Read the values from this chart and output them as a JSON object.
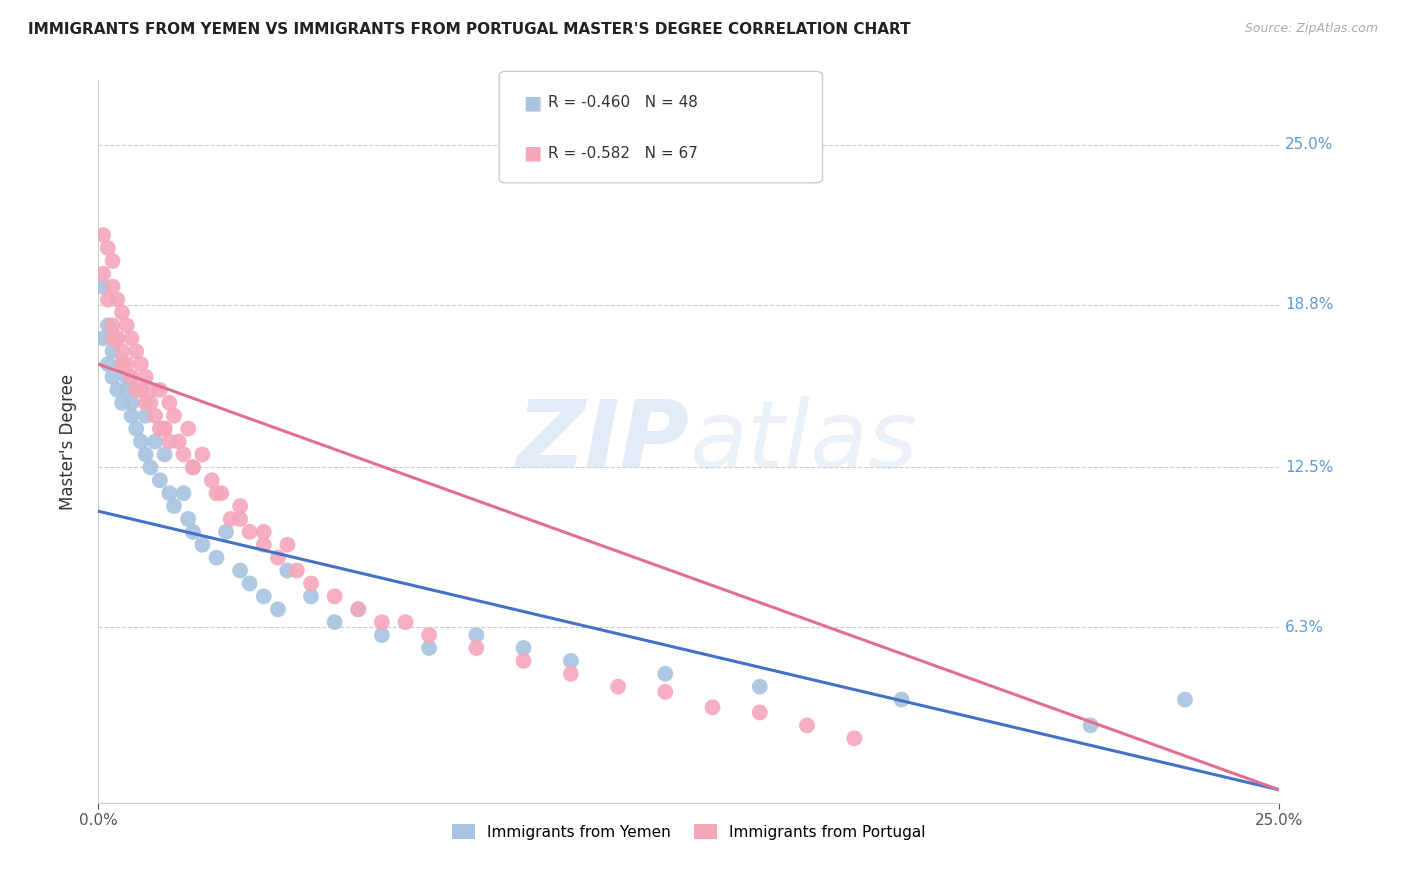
{
  "title": "IMMIGRANTS FROM YEMEN VS IMMIGRANTS FROM PORTUGAL MASTER'S DEGREE CORRELATION CHART",
  "source": "Source: ZipAtlas.com",
  "ylabel": "Master's Degree",
  "ytick_labels": [
    "25.0%",
    "18.8%",
    "12.5%",
    "6.3%"
  ],
  "ytick_values": [
    0.25,
    0.188,
    0.125,
    0.063
  ],
  "xlim": [
    0.0,
    0.25
  ],
  "ylim": [
    -0.005,
    0.275
  ],
  "legend_R_yemen": "-0.460",
  "legend_N_yemen": "48",
  "legend_R_portugal": "-0.582",
  "legend_N_portugal": "67",
  "color_yemen": "#a8c4e0",
  "color_portugal": "#f4a7b9",
  "line_color_yemen": "#4472c4",
  "line_color_portugal": "#e07090",
  "watermark_zip": "ZIP",
  "watermark_atlas": "atlas",
  "yemen_x": [
    0.001,
    0.001,
    0.002,
    0.002,
    0.003,
    0.003,
    0.004,
    0.004,
    0.005,
    0.005,
    0.006,
    0.006,
    0.007,
    0.007,
    0.008,
    0.009,
    0.01,
    0.01,
    0.011,
    0.012,
    0.013,
    0.014,
    0.015,
    0.016,
    0.018,
    0.019,
    0.02,
    0.022,
    0.025,
    0.027,
    0.03,
    0.032,
    0.035,
    0.038,
    0.04,
    0.045,
    0.05,
    0.055,
    0.06,
    0.07,
    0.08,
    0.09,
    0.1,
    0.12,
    0.14,
    0.17,
    0.21,
    0.23
  ],
  "yemen_y": [
    0.195,
    0.175,
    0.18,
    0.165,
    0.17,
    0.16,
    0.175,
    0.155,
    0.165,
    0.15,
    0.155,
    0.16,
    0.145,
    0.15,
    0.14,
    0.135,
    0.145,
    0.13,
    0.125,
    0.135,
    0.12,
    0.13,
    0.115,
    0.11,
    0.115,
    0.105,
    0.1,
    0.095,
    0.09,
    0.1,
    0.085,
    0.08,
    0.075,
    0.07,
    0.085,
    0.075,
    0.065,
    0.07,
    0.06,
    0.055,
    0.06,
    0.055,
    0.05,
    0.045,
    0.04,
    0.035,
    0.025,
    0.035
  ],
  "portugal_x": [
    0.001,
    0.001,
    0.002,
    0.002,
    0.003,
    0.003,
    0.003,
    0.004,
    0.004,
    0.005,
    0.005,
    0.006,
    0.006,
    0.007,
    0.007,
    0.008,
    0.008,
    0.009,
    0.01,
    0.01,
    0.011,
    0.012,
    0.013,
    0.013,
    0.014,
    0.015,
    0.015,
    0.016,
    0.018,
    0.019,
    0.02,
    0.022,
    0.024,
    0.026,
    0.028,
    0.03,
    0.032,
    0.035,
    0.038,
    0.04,
    0.042,
    0.045,
    0.05,
    0.055,
    0.06,
    0.065,
    0.07,
    0.08,
    0.09,
    0.1,
    0.11,
    0.12,
    0.13,
    0.14,
    0.15,
    0.16,
    0.003,
    0.005,
    0.007,
    0.009,
    0.011,
    0.014,
    0.017,
    0.02,
    0.025,
    0.03,
    0.035
  ],
  "portugal_y": [
    0.215,
    0.2,
    0.21,
    0.19,
    0.205,
    0.195,
    0.18,
    0.19,
    0.175,
    0.185,
    0.17,
    0.18,
    0.165,
    0.175,
    0.16,
    0.17,
    0.155,
    0.165,
    0.16,
    0.15,
    0.155,
    0.145,
    0.155,
    0.14,
    0.14,
    0.15,
    0.135,
    0.145,
    0.13,
    0.14,
    0.125,
    0.13,
    0.12,
    0.115,
    0.105,
    0.11,
    0.1,
    0.1,
    0.09,
    0.095,
    0.085,
    0.08,
    0.075,
    0.07,
    0.065,
    0.065,
    0.06,
    0.055,
    0.05,
    0.045,
    0.04,
    0.038,
    0.032,
    0.03,
    0.025,
    0.02,
    0.175,
    0.165,
    0.16,
    0.155,
    0.15,
    0.14,
    0.135,
    0.125,
    0.115,
    0.105,
    0.095
  ],
  "yemen_line_x": [
    0.0,
    0.25
  ],
  "yemen_line_y": [
    0.108,
    0.0
  ],
  "portugal_line_x": [
    0.0,
    0.25
  ],
  "portugal_line_y": [
    0.165,
    0.0
  ]
}
